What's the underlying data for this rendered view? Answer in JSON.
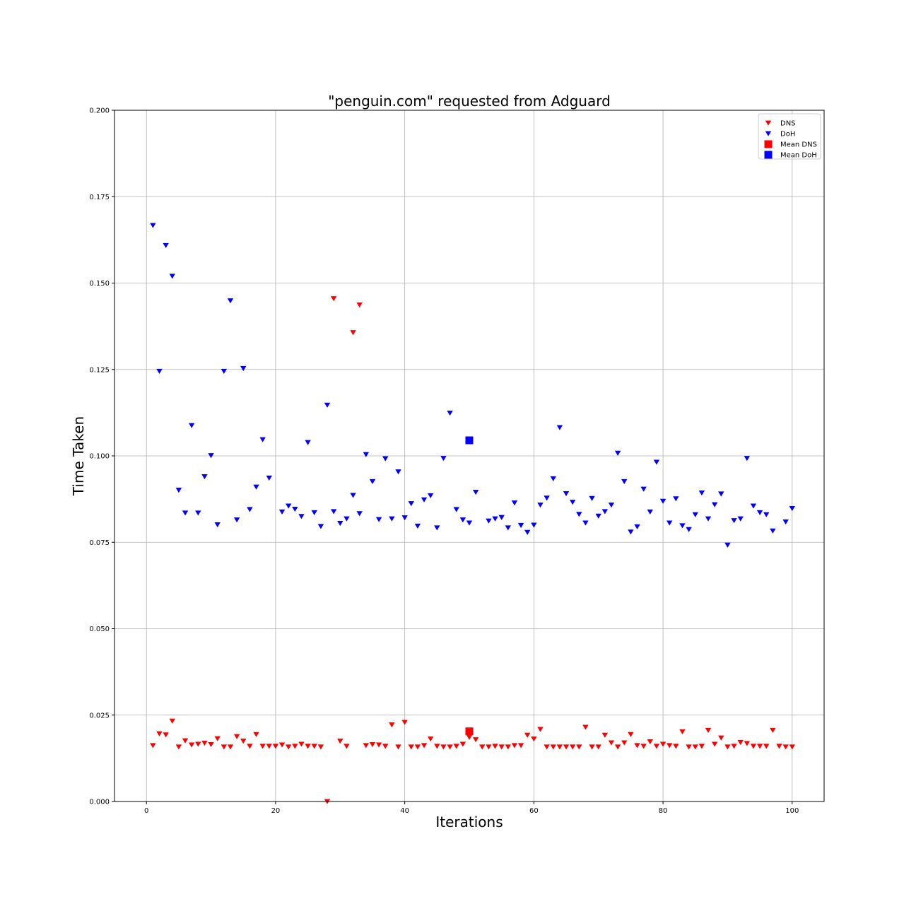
{
  "chart_data": {
    "type": "scatter",
    "title": "\"penguin.com\" requested from Adguard",
    "xlabel": "Iterations",
    "ylabel": "Time Taken",
    "xlim": [
      -4.95,
      104.95
    ],
    "ylim": [
      0,
      0.2
    ],
    "xticks": [
      0,
      20,
      40,
      60,
      80,
      100
    ],
    "yticks": [
      0.0,
      0.025,
      0.05,
      0.075,
      0.1,
      0.125,
      0.15,
      0.175,
      0.2
    ],
    "ytick_labels": [
      "0.000",
      "0.025",
      "0.050",
      "0.075",
      "0.100",
      "0.125",
      "0.150",
      "0.175",
      "0.200"
    ],
    "grid": true,
    "legend_position": "top-right",
    "series": [
      {
        "name": "DNS",
        "marker": "triangle-down",
        "color": "#ff0000",
        "x": [
          1,
          2,
          3,
          4,
          5,
          6,
          7,
          8,
          9,
          10,
          11,
          12,
          13,
          14,
          15,
          16,
          17,
          18,
          19,
          20,
          21,
          22,
          23,
          24,
          25,
          26,
          27,
          28,
          29,
          30,
          31,
          32,
          33,
          34,
          35,
          36,
          37,
          38,
          39,
          40,
          41,
          42,
          43,
          44,
          45,
          46,
          47,
          48,
          49,
          50,
          51,
          52,
          53,
          54,
          55,
          56,
          57,
          58,
          59,
          60,
          61,
          62,
          63,
          64,
          65,
          66,
          67,
          68,
          69,
          70,
          71,
          72,
          73,
          74,
          75,
          76,
          77,
          78,
          79,
          80,
          81,
          82,
          83,
          84,
          85,
          86,
          87,
          88,
          89,
          90,
          91,
          92,
          93,
          94,
          95,
          96,
          97,
          98,
          99,
          100
        ],
        "y": [
          0.0162,
          0.0196,
          0.0193,
          0.0233,
          0.0158,
          0.0176,
          0.0164,
          0.0166,
          0.0169,
          0.0165,
          0.0182,
          0.0158,
          0.0158,
          0.0188,
          0.0175,
          0.016,
          0.0194,
          0.016,
          0.016,
          0.016,
          0.0164,
          0.0158,
          0.016,
          0.0166,
          0.016,
          0.016,
          0.0158,
          0.0,
          0.1455,
          0.0175,
          0.016,
          0.1357,
          0.1437,
          0.0162,
          0.0165,
          0.0164,
          0.016,
          0.0222,
          0.0158,
          0.0229,
          0.0158,
          0.0158,
          0.0162,
          0.0181,
          0.016,
          0.0158,
          0.0158,
          0.016,
          0.0166,
          0.0186,
          0.0179,
          0.0158,
          0.0158,
          0.016,
          0.0158,
          0.0158,
          0.0162,
          0.0162,
          0.0192,
          0.0181,
          0.0209,
          0.0158,
          0.0158,
          0.0158,
          0.0158,
          0.0158,
          0.0158,
          0.0215,
          0.0158,
          0.0158,
          0.0192,
          0.017,
          0.0158,
          0.017,
          0.0194,
          0.0162,
          0.016,
          0.0173,
          0.016,
          0.0166,
          0.0162,
          0.016,
          0.0202,
          0.0158,
          0.0158,
          0.016,
          0.0206,
          0.0166,
          0.0184,
          0.0158,
          0.016,
          0.0171,
          0.0168,
          0.016,
          0.016,
          0.016,
          0.0206,
          0.016,
          0.0158,
          0.0158
        ]
      },
      {
        "name": "DoH",
        "marker": "triangle-down",
        "color": "#0000ff",
        "x": [
          1,
          2,
          3,
          4,
          5,
          6,
          7,
          8,
          9,
          10,
          11,
          12,
          13,
          14,
          15,
          16,
          17,
          18,
          19,
          20,
          21,
          22,
          23,
          24,
          25,
          26,
          27,
          28,
          29,
          30,
          31,
          32,
          33,
          34,
          35,
          36,
          37,
          38,
          39,
          40,
          41,
          42,
          43,
          44,
          45,
          46,
          47,
          48,
          49,
          50,
          51,
          52,
          53,
          54,
          55,
          56,
          57,
          58,
          59,
          60,
          61,
          62,
          63,
          64,
          65,
          66,
          67,
          68,
          69,
          70,
          71,
          72,
          73,
          74,
          75,
          76,
          77,
          78,
          79,
          80,
          81,
          82,
          83,
          84,
          85,
          86,
          87,
          88,
          89,
          90,
          91,
          92,
          93,
          94,
          95,
          96,
          97,
          98,
          99,
          100
        ],
        "y": [
          0.1667,
          0.1245,
          0.1609,
          0.152,
          0.0901,
          0.0835,
          0.1088,
          0.0835,
          0.094,
          0.1001,
          0.0801,
          0.1245,
          0.1449,
          0.0815,
          0.1253,
          0.0845,
          0.091,
          0.1047,
          0.0936,
          null,
          0.0838,
          0.0855,
          0.0846,
          0.0825,
          0.1039,
          0.0836,
          0.0796,
          0.1147,
          0.0839,
          0.0805,
          0.0818,
          0.0886,
          0.0833,
          0.1004,
          0.0926,
          0.0816,
          0.0992,
          0.0818,
          0.0954,
          0.0821,
          0.0862,
          0.0797,
          0.0873,
          0.0885,
          0.0792,
          0.0993,
          0.1124,
          0.0845,
          0.0815,
          0.0806,
          0.0895,
          null,
          0.0812,
          0.0818,
          0.0822,
          0.0792,
          0.0864,
          0.0799,
          0.0779,
          0.08,
          0.0858,
          0.0878,
          0.0934,
          0.1082,
          0.0891,
          0.0866,
          0.0831,
          0.0806,
          0.0877,
          0.0826,
          0.0839,
          0.0858,
          0.1008,
          0.0926,
          0.078,
          0.0795,
          0.0904,
          0.0838,
          0.0982,
          0.0869,
          0.0806,
          0.0876,
          0.0798,
          0.0787,
          0.083,
          0.0893,
          0.0818,
          0.0859,
          0.089,
          0.0742,
          0.0813,
          0.0818,
          0.0993,
          0.0855,
          0.0836,
          0.083,
          0.0783,
          null,
          0.0809,
          0.0848
        ]
      },
      {
        "name": "Mean DNS",
        "marker": "square",
        "color": "#ff0000",
        "x": [
          50
        ],
        "y": [
          0.0203
        ]
      },
      {
        "name": "Mean DoH",
        "marker": "square",
        "color": "#0000ff",
        "x": [
          50
        ],
        "y": [
          0.1045
        ]
      }
    ]
  }
}
